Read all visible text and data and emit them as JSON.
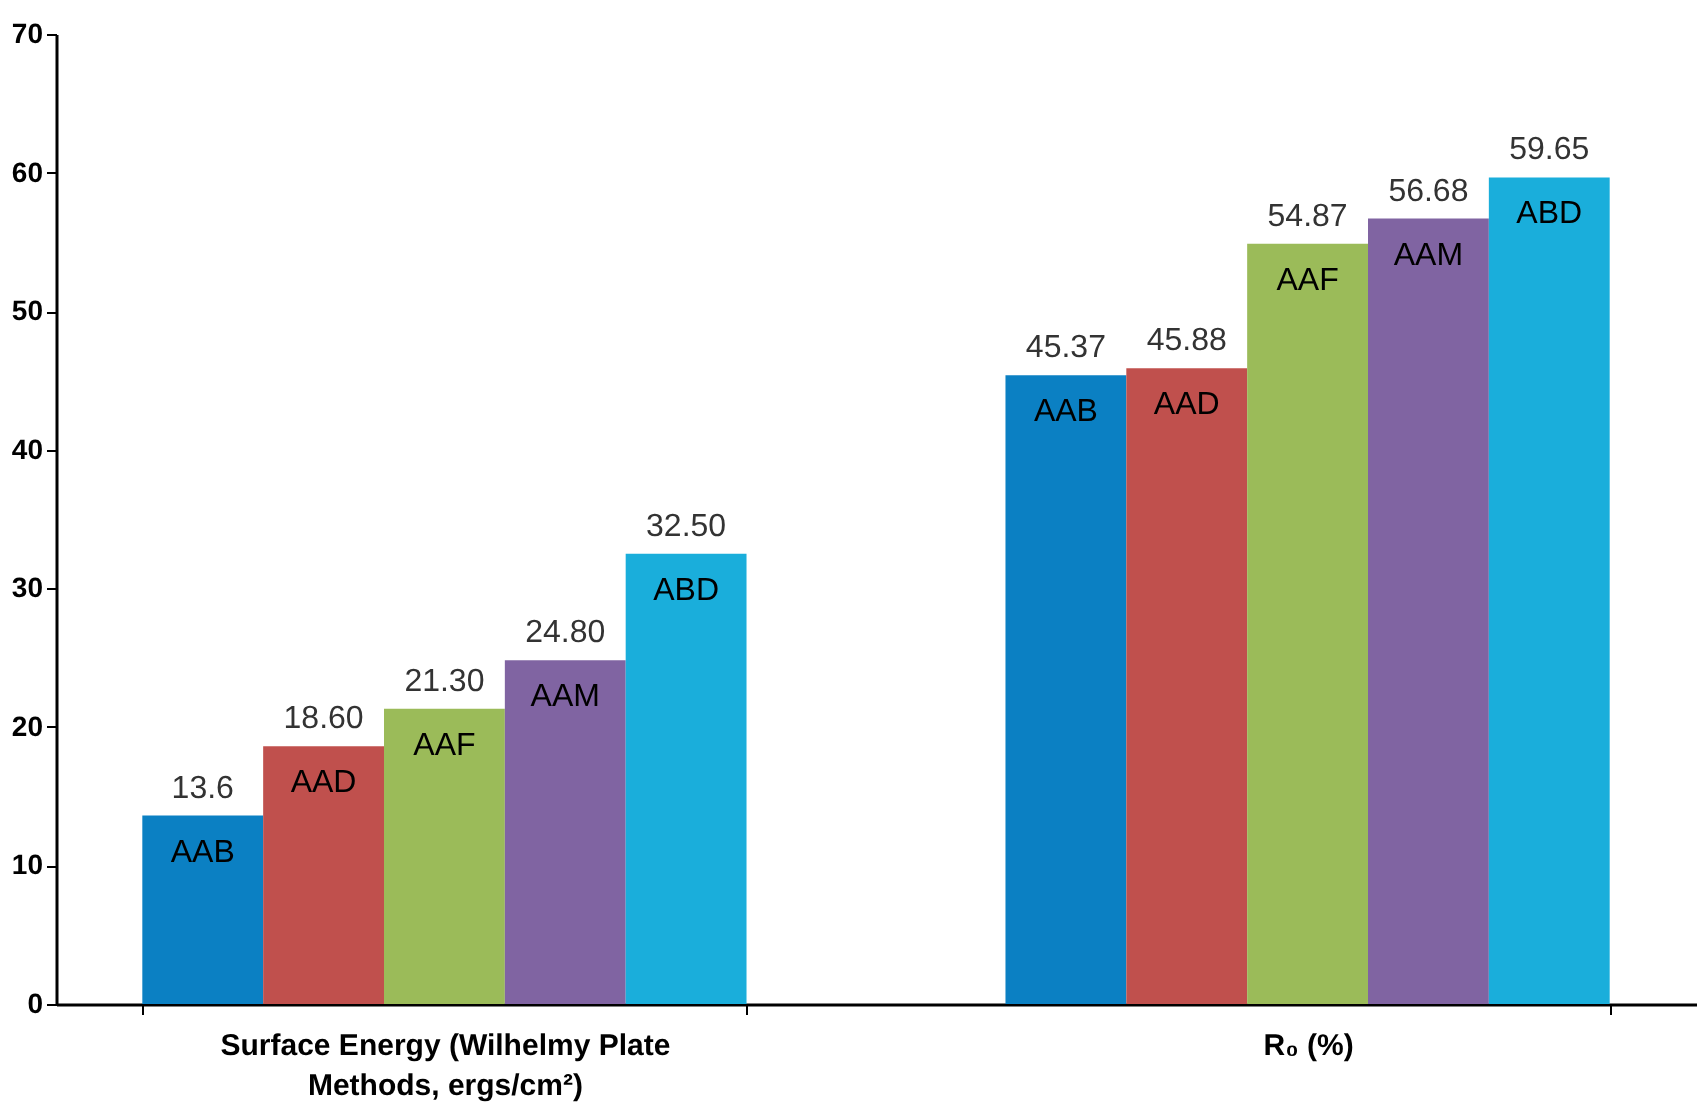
{
  "chart_data": {
    "type": "bar",
    "categories": [
      "Surface Energy (Wilhelmy Plate Methods, ergs/cm²)",
      "R₀ (%)"
    ],
    "series": [
      {
        "name": "AAB",
        "color": "#0b80c3",
        "values": [
          13.6,
          45.37
        ],
        "value_labels": [
          "13.6",
          "45.37"
        ]
      },
      {
        "name": "AAD",
        "color": "#c0504d",
        "values": [
          18.6,
          45.88
        ],
        "value_labels": [
          "18.60",
          "45.88"
        ]
      },
      {
        "name": "AAF",
        "color": "#9bbb59",
        "values": [
          21.3,
          54.87
        ],
        "value_labels": [
          "21.30",
          "54.87"
        ]
      },
      {
        "name": "AAM",
        "color": "#8064a2",
        "values": [
          24.8,
          56.68
        ],
        "value_labels": [
          "24.80",
          "56.68"
        ]
      },
      {
        "name": "ABD",
        "color": "#1aaedb",
        "values": [
          32.5,
          59.65
        ],
        "value_labels": [
          "32.50",
          "59.65"
        ]
      }
    ],
    "ylim": [
      0,
      70
    ],
    "yticks": [
      0,
      10,
      20,
      30,
      40,
      50,
      60,
      70
    ],
    "grid": false
  }
}
